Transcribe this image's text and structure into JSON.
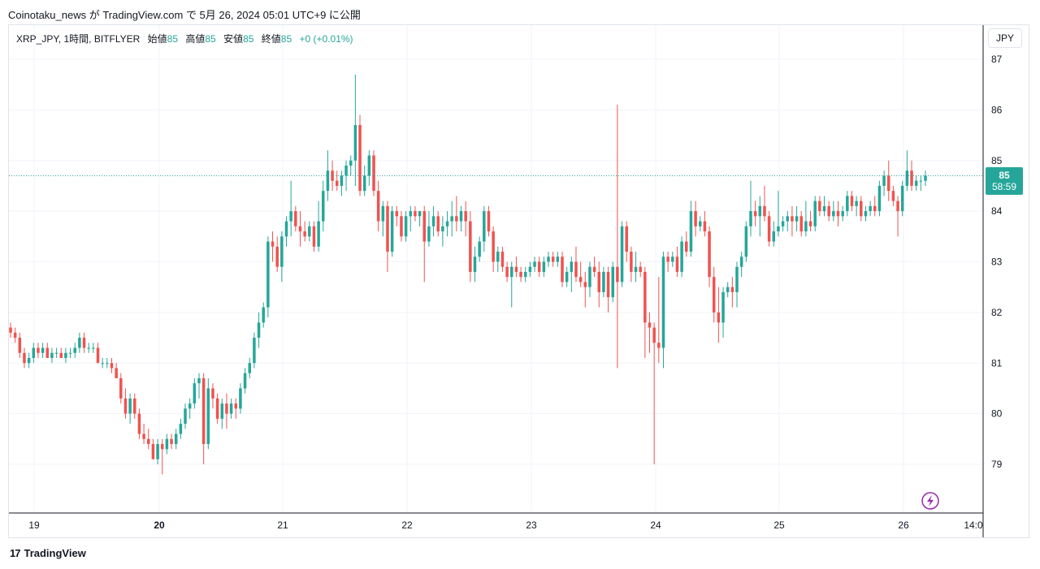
{
  "header": {
    "caption": "Coinotaku_news が TradingView.com で 5月 26, 2024 05:01 UTC+9 に公開"
  },
  "legend": {
    "symbol": "XRP_JPY, 1時間, BITFLYER",
    "open_label": "始値",
    "open_value": "85",
    "high_label": "高値",
    "high_value": "85",
    "low_label": "安値",
    "low_value": "85",
    "close_label": "終値",
    "close_value": "85",
    "change": "+0 (+0.01%)"
  },
  "currency_button": "JPY",
  "price_tag": {
    "price": "85",
    "countdown": "58:59"
  },
  "footer": {
    "brand": "TradingView"
  },
  "colors": {
    "up": "#26a69a",
    "down": "#ef5350",
    "grid": "#f0f3fa",
    "text": "#131722",
    "icon": "#9c27b0"
  },
  "icons": {
    "lightning": "lightning-icon"
  },
  "chart_data": {
    "type": "candlestick",
    "y_ticks": [
      79,
      80,
      81,
      82,
      83,
      84,
      85,
      86,
      87
    ],
    "x_ticks": [
      "19",
      "20",
      "21",
      "22",
      "23",
      "24",
      "25",
      "26",
      "14:0"
    ],
    "ylim": [
      78.1,
      87.2
    ],
    "current_price": 84.7,
    "candles_note": "approximate hourly candles, open/high/low/close",
    "candles": [
      [
        81.7,
        81.8,
        81.5,
        81.6
      ],
      [
        81.6,
        81.7,
        81.4,
        81.5
      ],
      [
        81.5,
        81.6,
        81.1,
        81.2
      ],
      [
        81.2,
        81.3,
        80.9,
        81.0
      ],
      [
        81.0,
        81.2,
        80.9,
        81.1
      ],
      [
        81.1,
        81.4,
        81.0,
        81.3
      ],
      [
        81.3,
        81.4,
        81.1,
        81.2
      ],
      [
        81.2,
        81.4,
        81.1,
        81.3
      ],
      [
        81.3,
        81.4,
        81.1,
        81.1
      ],
      [
        81.1,
        81.3,
        81.0,
        81.2
      ],
      [
        81.2,
        81.3,
        81.1,
        81.2
      ],
      [
        81.2,
        81.3,
        81.1,
        81.1
      ],
      [
        81.1,
        81.3,
        81.0,
        81.2
      ],
      [
        81.2,
        81.3,
        81.1,
        81.2
      ],
      [
        81.2,
        81.4,
        81.1,
        81.3
      ],
      [
        81.3,
        81.6,
        81.2,
        81.5
      ],
      [
        81.5,
        81.6,
        81.2,
        81.3
      ],
      [
        81.3,
        81.4,
        81.2,
        81.3
      ],
      [
        81.3,
        81.4,
        81.2,
        81.3
      ],
      [
        81.3,
        81.4,
        81.0,
        81.0
      ],
      [
        81.0,
        81.1,
        80.9,
        81.0
      ],
      [
        81.0,
        81.1,
        80.9,
        81.0
      ],
      [
        81.0,
        81.1,
        80.8,
        80.9
      ],
      [
        80.9,
        81.0,
        80.7,
        80.7
      ],
      [
        80.7,
        80.8,
        80.2,
        80.3
      ],
      [
        80.3,
        80.5,
        79.9,
        80.0
      ],
      [
        80.0,
        80.4,
        79.8,
        80.3
      ],
      [
        80.3,
        80.4,
        79.9,
        80.0
      ],
      [
        80.0,
        80.1,
        79.5,
        79.6
      ],
      [
        79.6,
        79.8,
        79.4,
        79.5
      ],
      [
        79.5,
        79.7,
        79.3,
        79.4
      ],
      [
        79.4,
        79.5,
        79.1,
        79.1
      ],
      [
        79.1,
        79.5,
        79.0,
        79.4
      ],
      [
        79.4,
        79.5,
        78.8,
        79.3
      ],
      [
        79.3,
        79.6,
        79.2,
        79.5
      ],
      [
        79.5,
        79.6,
        79.3,
        79.4
      ],
      [
        79.4,
        79.7,
        79.3,
        79.6
      ],
      [
        79.6,
        79.9,
        79.5,
        79.8
      ],
      [
        79.8,
        80.2,
        79.7,
        80.1
      ],
      [
        80.1,
        80.3,
        79.9,
        80.2
      ],
      [
        80.2,
        80.7,
        80.1,
        80.6
      ],
      [
        80.6,
        80.8,
        80.3,
        80.7
      ],
      [
        80.7,
        80.8,
        79.0,
        79.4
      ],
      [
        79.4,
        80.7,
        79.3,
        80.5
      ],
      [
        80.5,
        80.6,
        80.1,
        80.3
      ],
      [
        80.3,
        80.4,
        79.8,
        79.9
      ],
      [
        79.9,
        80.3,
        79.7,
        80.2
      ],
      [
        80.2,
        80.4,
        79.7,
        80.0
      ],
      [
        80.0,
        80.3,
        79.9,
        80.2
      ],
      [
        80.2,
        80.3,
        79.9,
        80.1
      ],
      [
        80.1,
        80.6,
        80.0,
        80.5
      ],
      [
        80.5,
        80.9,
        80.4,
        80.8
      ],
      [
        80.8,
        81.1,
        80.7,
        81.0
      ],
      [
        81.0,
        81.6,
        80.9,
        81.5
      ],
      [
        81.5,
        82.0,
        81.3,
        81.8
      ],
      [
        81.8,
        82.2,
        81.7,
        82.1
      ],
      [
        82.1,
        83.5,
        81.9,
        83.4
      ],
      [
        83.4,
        83.6,
        83.0,
        83.3
      ],
      [
        83.3,
        83.5,
        82.8,
        82.9
      ],
      [
        82.9,
        83.6,
        82.6,
        83.5
      ],
      [
        83.5,
        83.9,
        83.3,
        83.8
      ],
      [
        83.8,
        84.6,
        83.5,
        84.0
      ],
      [
        84.0,
        84.1,
        83.6,
        83.7
      ],
      [
        83.7,
        84.0,
        83.3,
        83.6
      ],
      [
        83.6,
        83.8,
        83.4,
        83.5
      ],
      [
        83.5,
        83.8,
        83.4,
        83.7
      ],
      [
        83.7,
        83.8,
        83.2,
        83.3
      ],
      [
        83.3,
        84.2,
        83.2,
        83.8
      ],
      [
        83.8,
        84.6,
        83.6,
        84.4
      ],
      [
        84.4,
        85.2,
        84.2,
        84.8
      ],
      [
        84.8,
        85.0,
        84.4,
        84.6
      ],
      [
        84.6,
        84.8,
        84.4,
        84.5
      ],
      [
        84.5,
        84.8,
        84.3,
        84.7
      ],
      [
        84.7,
        85.0,
        84.4,
        84.9
      ],
      [
        84.9,
        85.1,
        84.7,
        85.0
      ],
      [
        85.0,
        86.7,
        84.5,
        85.7
      ],
      [
        85.7,
        85.9,
        84.3,
        84.4
      ],
      [
        84.4,
        84.9,
        84.3,
        84.7
      ],
      [
        84.7,
        85.2,
        84.5,
        85.1
      ],
      [
        85.1,
        85.2,
        84.3,
        84.4
      ],
      [
        84.4,
        84.6,
        83.6,
        83.8
      ],
      [
        83.8,
        84.2,
        83.5,
        84.1
      ],
      [
        84.1,
        84.2,
        82.8,
        83.2
      ],
      [
        83.2,
        84.1,
        83.1,
        84.0
      ],
      [
        84.0,
        84.1,
        83.7,
        83.9
      ],
      [
        83.9,
        84.0,
        83.4,
        83.5
      ],
      [
        83.5,
        84.0,
        83.4,
        83.9
      ],
      [
        83.9,
        84.1,
        83.6,
        84.0
      ],
      [
        84.0,
        84.1,
        83.8,
        83.9
      ],
      [
        83.9,
        84.0,
        83.7,
        84.0
      ],
      [
        84.0,
        84.1,
        82.6,
        83.4
      ],
      [
        83.4,
        84.0,
        83.3,
        83.7
      ],
      [
        83.7,
        84.1,
        83.5,
        83.9
      ],
      [
        83.9,
        84.0,
        83.5,
        83.6
      ],
      [
        83.6,
        83.9,
        83.3,
        83.7
      ],
      [
        83.7,
        84.0,
        83.5,
        83.8
      ],
      [
        83.8,
        84.2,
        83.5,
        83.9
      ],
      [
        83.9,
        84.3,
        83.6,
        83.8
      ],
      [
        83.8,
        84.1,
        83.6,
        84.0
      ],
      [
        84.0,
        84.2,
        83.5,
        83.8
      ],
      [
        83.8,
        84.0,
        82.6,
        82.8
      ],
      [
        82.8,
        83.3,
        82.6,
        83.1
      ],
      [
        83.1,
        83.5,
        83.0,
        83.4
      ],
      [
        83.4,
        84.1,
        83.2,
        84.0
      ],
      [
        84.0,
        84.1,
        83.5,
        83.6
      ],
      [
        83.6,
        83.7,
        82.8,
        83.0
      ],
      [
        83.0,
        83.3,
        82.8,
        83.2
      ],
      [
        83.2,
        83.3,
        82.8,
        82.9
      ],
      [
        82.9,
        83.0,
        82.6,
        82.7
      ],
      [
        82.7,
        83.0,
        82.1,
        82.9
      ],
      [
        82.9,
        83.1,
        82.7,
        82.8
      ],
      [
        82.8,
        82.9,
        82.6,
        82.7
      ],
      [
        82.7,
        82.9,
        82.6,
        82.8
      ],
      [
        82.8,
        83.0,
        82.7,
        82.9
      ],
      [
        82.9,
        83.1,
        82.8,
        83.0
      ],
      [
        83.0,
        83.1,
        82.7,
        82.8
      ],
      [
        82.8,
        83.1,
        82.7,
        83.0
      ],
      [
        83.0,
        83.2,
        82.9,
        83.1
      ],
      [
        83.1,
        83.2,
        82.9,
        83.0
      ],
      [
        83.0,
        83.2,
        82.9,
        83.1
      ],
      [
        83.1,
        83.2,
        82.5,
        82.6
      ],
      [
        82.6,
        82.9,
        82.5,
        82.8
      ],
      [
        82.8,
        83.1,
        82.4,
        83.0
      ],
      [
        83.0,
        83.3,
        82.6,
        82.7
      ],
      [
        82.7,
        83.0,
        82.5,
        82.6
      ],
      [
        82.6,
        82.8,
        82.1,
        82.5
      ],
      [
        82.5,
        83.0,
        82.3,
        82.9
      ],
      [
        82.9,
        83.1,
        82.7,
        82.8
      ],
      [
        82.8,
        83.0,
        82.1,
        82.4
      ],
      [
        82.4,
        82.9,
        82.3,
        82.8
      ],
      [
        82.8,
        82.9,
        82.0,
        82.3
      ],
      [
        82.3,
        83.0,
        82.2,
        82.9
      ],
      [
        82.9,
        86.1,
        80.9,
        82.6
      ],
      [
        82.6,
        83.8,
        82.5,
        83.7
      ],
      [
        83.7,
        83.8,
        83.0,
        83.2
      ],
      [
        83.2,
        83.3,
        82.6,
        82.8
      ],
      [
        82.8,
        83.2,
        82.6,
        82.9
      ],
      [
        82.9,
        83.0,
        82.7,
        82.8
      ],
      [
        82.8,
        82.9,
        81.1,
        81.8
      ],
      [
        81.8,
        82.0,
        81.2,
        81.7
      ],
      [
        81.7,
        81.8,
        79.0,
        81.4
      ],
      [
        81.4,
        82.7,
        81.0,
        81.3
      ],
      [
        81.3,
        83.2,
        80.9,
        83.1
      ],
      [
        83.1,
        83.2,
        82.8,
        83.0
      ],
      [
        83.0,
        83.2,
        82.9,
        83.1
      ],
      [
        83.1,
        83.3,
        82.7,
        82.8
      ],
      [
        82.8,
        83.5,
        82.7,
        83.4
      ],
      [
        83.4,
        83.6,
        83.1,
        83.2
      ],
      [
        83.2,
        84.2,
        83.1,
        84.0
      ],
      [
        84.0,
        84.2,
        83.5,
        83.7
      ],
      [
        83.7,
        83.9,
        83.6,
        83.8
      ],
      [
        83.8,
        84.0,
        83.5,
        83.6
      ],
      [
        83.6,
        83.7,
        82.5,
        82.7
      ],
      [
        82.7,
        82.9,
        81.8,
        82.0
      ],
      [
        82.0,
        82.5,
        81.4,
        81.8
      ],
      [
        81.8,
        82.5,
        81.5,
        82.4
      ],
      [
        82.4,
        82.6,
        82.3,
        82.5
      ],
      [
        82.5,
        82.7,
        82.1,
        82.4
      ],
      [
        82.4,
        83.0,
        82.1,
        82.9
      ],
      [
        82.9,
        83.2,
        82.7,
        83.1
      ],
      [
        83.1,
        83.8,
        83.0,
        83.7
      ],
      [
        83.7,
        84.6,
        83.5,
        84.0
      ],
      [
        84.0,
        84.2,
        83.7,
        83.9
      ],
      [
        83.9,
        84.3,
        83.5,
        84.1
      ],
      [
        84.1,
        84.5,
        83.8,
        83.9
      ],
      [
        83.9,
        84.0,
        83.3,
        83.4
      ],
      [
        83.4,
        83.8,
        83.3,
        83.6
      ],
      [
        83.6,
        84.4,
        83.5,
        83.7
      ],
      [
        83.7,
        83.9,
        83.6,
        83.8
      ],
      [
        83.8,
        84.0,
        83.6,
        83.9
      ],
      [
        83.9,
        84.1,
        83.5,
        83.8
      ],
      [
        83.8,
        84.1,
        83.6,
        83.9
      ],
      [
        83.9,
        84.0,
        83.5,
        83.6
      ],
      [
        83.6,
        84.2,
        83.5,
        83.8
      ],
      [
        83.8,
        84.0,
        83.6,
        83.7
      ],
      [
        83.7,
        84.3,
        83.6,
        84.2
      ],
      [
        84.2,
        84.3,
        83.9,
        84.0
      ],
      [
        84.0,
        84.3,
        83.9,
        84.1
      ],
      [
        84.1,
        84.2,
        83.8,
        83.9
      ],
      [
        83.9,
        84.2,
        83.8,
        84.0
      ],
      [
        84.0,
        84.2,
        83.7,
        83.9
      ],
      [
        83.9,
        84.1,
        83.8,
        84.0
      ],
      [
        84.0,
        84.4,
        83.9,
        84.3
      ],
      [
        84.3,
        84.4,
        84.0,
        84.1
      ],
      [
        84.1,
        84.3,
        83.9,
        84.2
      ],
      [
        84.2,
        84.3,
        83.8,
        83.9
      ],
      [
        83.9,
        84.1,
        83.8,
        84.0
      ],
      [
        84.0,
        84.2,
        83.9,
        84.1
      ],
      [
        84.1,
        84.3,
        83.9,
        84.0
      ],
      [
        84.0,
        84.6,
        83.9,
        84.5
      ],
      [
        84.5,
        84.8,
        84.3,
        84.7
      ],
      [
        84.7,
        85.0,
        84.2,
        84.4
      ],
      [
        84.4,
        84.5,
        84.1,
        84.2
      ],
      [
        84.2,
        84.3,
        83.5,
        84.0
      ],
      [
        84.0,
        84.6,
        83.9,
        84.5
      ],
      [
        84.5,
        85.2,
        84.4,
        84.8
      ],
      [
        84.8,
        85.0,
        84.4,
        84.5
      ],
      [
        84.5,
        84.7,
        84.4,
        84.6
      ],
      [
        84.6,
        84.7,
        84.4,
        84.6
      ],
      [
        84.6,
        84.8,
        84.5,
        84.7
      ]
    ]
  }
}
